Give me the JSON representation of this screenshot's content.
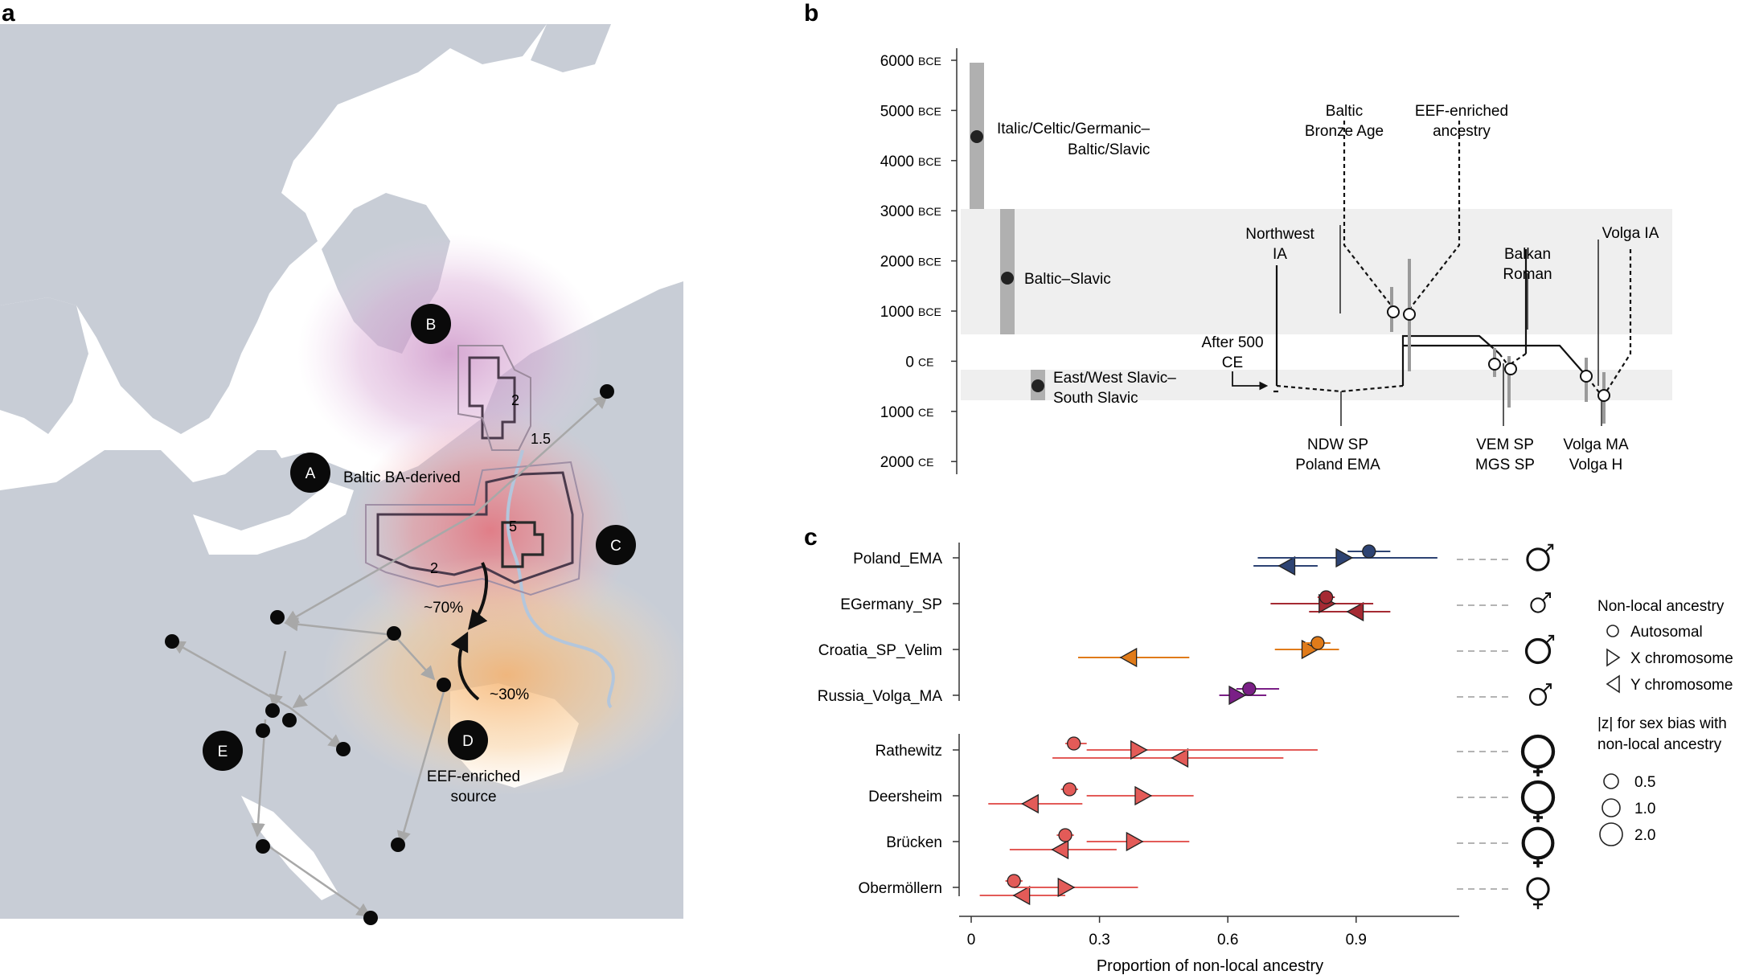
{
  "panels": {
    "a": "a",
    "b": "b",
    "c": "c"
  },
  "colors": {
    "land": "#c8cdd6",
    "sea": "#ffffff",
    "river": "#b3c6dc",
    "arrow_gray": "#a8a8a8",
    "band_gray": "#efefef",
    "bar_gray": "#b0b0b0",
    "navy": "#2d4373",
    "crimson": "#a52a33",
    "orange": "#e07b1a",
    "purple": "#7a1f86",
    "salmon": "#e35b58"
  },
  "map": {
    "labels": {
      "A": "A",
      "B": "B",
      "C": "C",
      "D": "D",
      "E": "E"
    },
    "region_labels": {
      "baltic": "Baltic BA-derived",
      "eef_line1": "EEF-enriched",
      "eef_line2": "source"
    },
    "migration_labels": {
      "seventy": "~70%",
      "thirty": "~30%"
    },
    "contour_numbers": {
      "two_north": "2",
      "two_south": "2",
      "five": "5",
      "one_five": "1.5"
    },
    "icons": [
      "site-dot",
      "migration-arrow"
    ]
  },
  "timeline": {
    "y_ticks": [
      {
        "value": "6000",
        "era": "BCE"
      },
      {
        "value": "5000",
        "era": "BCE"
      },
      {
        "value": "4000",
        "era": "BCE"
      },
      {
        "value": "3000",
        "era": "BCE"
      },
      {
        "value": "2000",
        "era": "BCE"
      },
      {
        "value": "1000",
        "era": "BCE"
      },
      {
        "value": "0",
        "era": "CE"
      },
      {
        "value": "1000",
        "era": "CE"
      },
      {
        "value": "2000",
        "era": "CE"
      }
    ],
    "split_labels": {
      "italic_1": "Italic/Celtic/Germanic–",
      "italic_2": "Baltic/Slavic",
      "baltic_slavic": "Baltic–Slavic",
      "ew_1": "East/West Slavic–",
      "ew_2": "South Slavic"
    },
    "tree_labels": {
      "baltic_ba_1": "Baltic",
      "baltic_ba_2": "Bronze Age",
      "eef_1": "EEF-enriched",
      "eef_2": "ancestry",
      "nw_1": "Northwest",
      "nw_2": "IA",
      "balkan_1": "Balkan",
      "balkan_2": "Roman",
      "volga_ia": "Volga IA",
      "after_1": "After 500",
      "after_2": "CE",
      "ndw_1": "NDW SP",
      "ndw_2": "Poland EMA",
      "vem_1": "VEM SP",
      "vem_2": "MGS SP",
      "volgama_1": "Volga MA",
      "volgama_2": "Volga H"
    }
  },
  "chart_data": {
    "type": "scatter",
    "xlabel": "Proportion of non-local ancestry",
    "x_ticks": [
      "0",
      "0.3",
      "0.6",
      "0.9"
    ],
    "xlim": [
      0,
      1.13
    ],
    "categories": [
      "Poland_EMA",
      "EGermany_SP",
      "Croatia_SP_Velim",
      "Russia_Volga_MA",
      "Rathewitz",
      "Deersheim",
      "Brücken",
      "Obermöllern"
    ],
    "series": [
      {
        "name": "Autosomal",
        "values": [
          0.93,
          0.83,
          0.81,
          0.65,
          0.24,
          0.23,
          0.22,
          0.1
        ],
        "ci": [
          [
            0.88,
            0.98
          ],
          [
            0.81,
            0.85
          ],
          [
            0.78,
            0.84
          ],
          [
            0.62,
            0.72
          ],
          [
            0.22,
            0.27
          ],
          [
            0.21,
            0.25
          ],
          [
            0.2,
            0.24
          ],
          [
            0.08,
            0.12
          ]
        ]
      },
      {
        "name": "X chromosome",
        "values": [
          0.87,
          0.83,
          0.79,
          0.62,
          0.39,
          0.4,
          0.38,
          0.22
        ],
        "ci": [
          [
            0.67,
            1.09
          ],
          [
            0.7,
            0.94
          ],
          [
            0.71,
            0.86
          ],
          [
            0.58,
            0.69
          ],
          [
            0.27,
            0.81
          ],
          [
            0.27,
            0.52
          ],
          [
            0.27,
            0.51
          ],
          [
            0.1,
            0.39
          ]
        ]
      },
      {
        "name": "Y chromosome",
        "values": [
          0.74,
          0.9,
          0.37,
          null,
          0.49,
          0.14,
          0.21,
          0.12
        ],
        "ci": [
          [
            0.66,
            0.81
          ],
          [
            0.79,
            0.98
          ],
          [
            0.25,
            0.51
          ],
          null,
          [
            0.19,
            0.73
          ],
          [
            0.04,
            0.26
          ],
          [
            0.09,
            0.34
          ],
          [
            0.02,
            0.22
          ]
        ]
      }
    ],
    "row_colors": [
      "#2d4373",
      "#a52a33",
      "#e07b1a",
      "#7a1f86",
      "#e35b58",
      "#e35b58",
      "#e35b58",
      "#e35b58"
    ],
    "sex_symbols": [
      "male",
      "male",
      "male",
      "male",
      "female",
      "female",
      "female",
      "female"
    ],
    "sex_bias_z": [
      1.1,
      0.4,
      1.3,
      0.6,
      2.0,
      2.0,
      1.9,
      1.1
    ],
    "legend": {
      "title": "Non-local ancestry",
      "items": [
        "Autosomal",
        "X chromosome",
        "Y chromosome"
      ],
      "size_title_1": "|z| for sex bias with",
      "size_title_2": "non-local ancestry",
      "sizes": [
        "0.5",
        "1.0",
        "2.0"
      ],
      "placement": "right"
    }
  }
}
